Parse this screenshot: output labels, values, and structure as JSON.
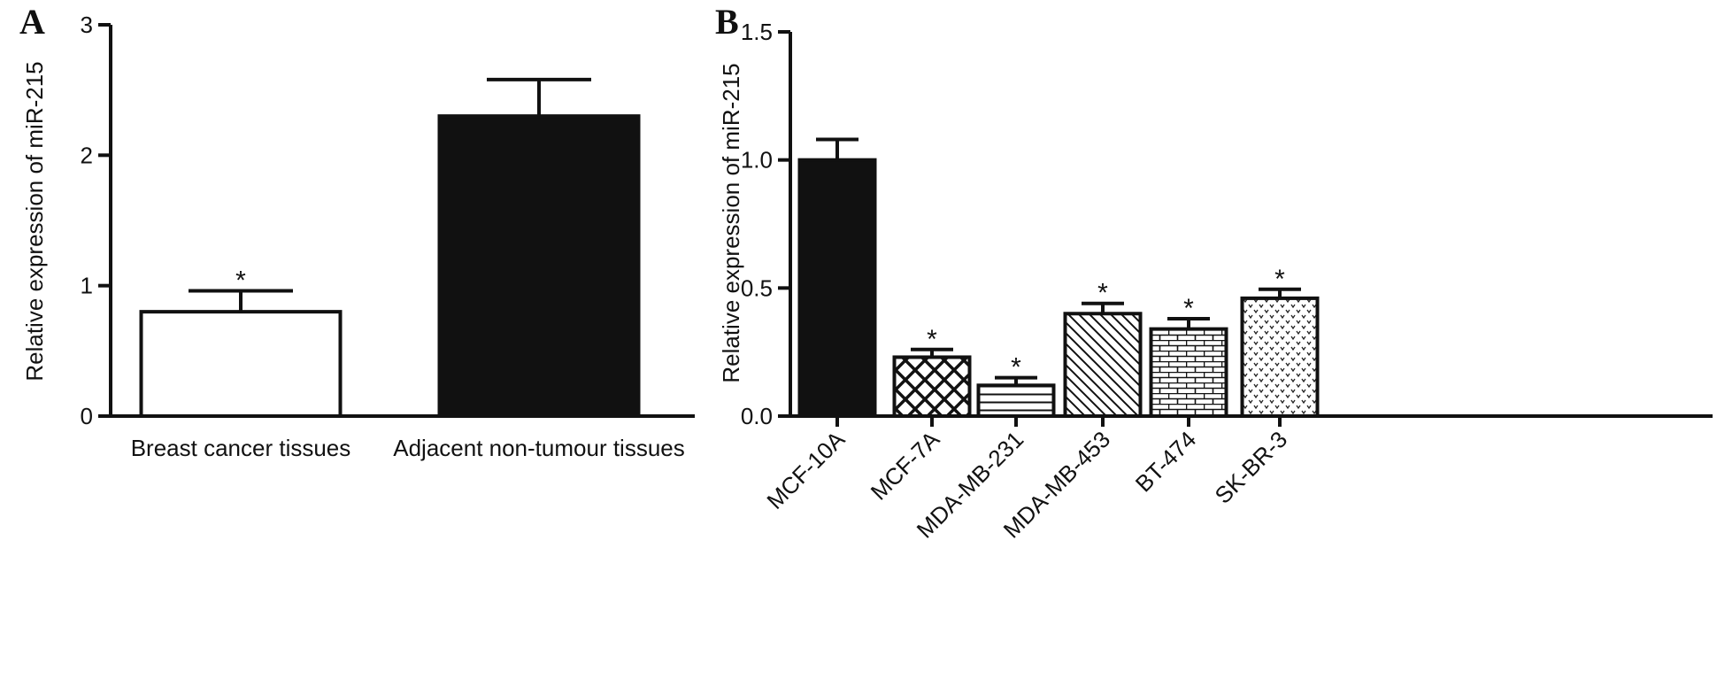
{
  "chart_data": [
    {
      "type": "bar",
      "panel": "A",
      "ylabel": "Relative expression of miR-215",
      "ylim": [
        0,
        3
      ],
      "yticks": [
        "0",
        "1",
        "2",
        "3"
      ],
      "categories": [
        "Breast cancer tissues",
        "Adjacent non-tumour tissues"
      ],
      "values": [
        0.8,
        2.3
      ],
      "errors": [
        0.16,
        0.28
      ],
      "significance": [
        "*",
        ""
      ],
      "fills": [
        "white",
        "black"
      ]
    },
    {
      "type": "bar",
      "panel": "B",
      "ylabel": "Relative expression of miR-215",
      "ylim": [
        0,
        1.5
      ],
      "yticks": [
        "0.0",
        "0.5",
        "1.0",
        "1.5"
      ],
      "categories": [
        "MCF-10A",
        "MCF-7A",
        "MDA-MB-231",
        "MDA-MB-453",
        "BT-474",
        "SK-BR-3"
      ],
      "values": [
        1.0,
        0.23,
        0.12,
        0.4,
        0.34,
        0.46
      ],
      "errors": [
        0.08,
        0.03,
        0.03,
        0.04,
        0.04,
        0.035
      ],
      "significance": [
        "",
        "*",
        "*",
        "*",
        "*",
        "*"
      ],
      "fills": [
        "black",
        "crosshatch",
        "horizontal-lines",
        "diagonal-lines",
        "brick",
        "dots"
      ]
    }
  ]
}
